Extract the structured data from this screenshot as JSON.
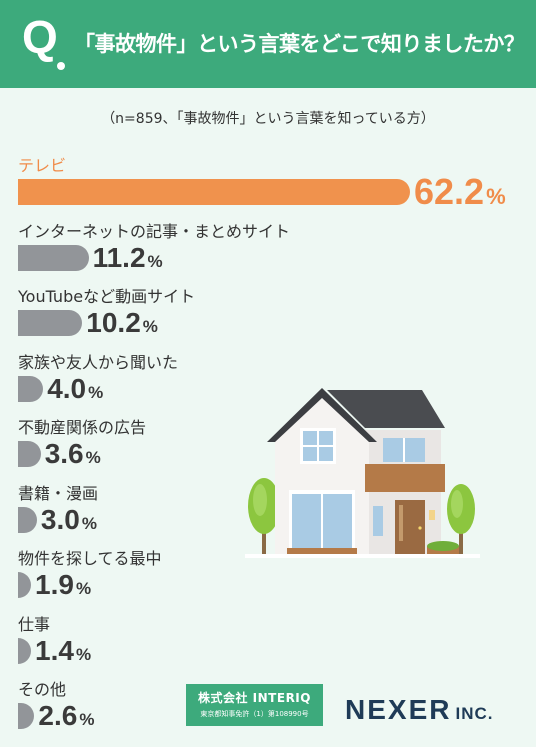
{
  "header": {
    "q_mark": "Q",
    "question": "「事故物件」という言葉をどこで知りましたか？"
  },
  "subtitle": "（n=859、「事故物件」という言葉を知っている方）",
  "unit": "%",
  "colors": {
    "header_bg": "#3daa7c",
    "page_bg": "#eef8f3",
    "accent_bar": "#f0924d",
    "default_bar": "#929599",
    "brand_dark": "#1f3b57"
  },
  "chart_data": {
    "type": "bar",
    "orientation": "horizontal",
    "title": "「事故物件」という言葉をどこで知りましたか？",
    "subtitle": "（n=859、「事故物件」という言葉を知っている方）",
    "categories": [
      "テレビ",
      "インターネットの記事・まとめサイト",
      "YouTubeなど動画サイト",
      "家族や友人から聞いた",
      "不動産関係の広告",
      "書籍・漫画",
      "物件を探してる最中",
      "仕事",
      "その他"
    ],
    "values": [
      62.2,
      11.2,
      10.2,
      4.0,
      3.6,
      3.0,
      1.9,
      1.4,
      2.6
    ],
    "value_labels": [
      "62.2",
      "11.2",
      "10.2",
      "4.0",
      "3.6",
      "3.0",
      "1.9",
      "1.4",
      "2.6"
    ],
    "unit": "%",
    "highlight_index": 0,
    "xlim": [
      0,
      62.2
    ],
    "grid": false
  },
  "footer": {
    "interiq_name": "株式会社 INTERIQ",
    "interiq_license": "東京都知事免許（1）第108990号",
    "nexer": "NEXER",
    "nexer_suffix": "INC."
  }
}
